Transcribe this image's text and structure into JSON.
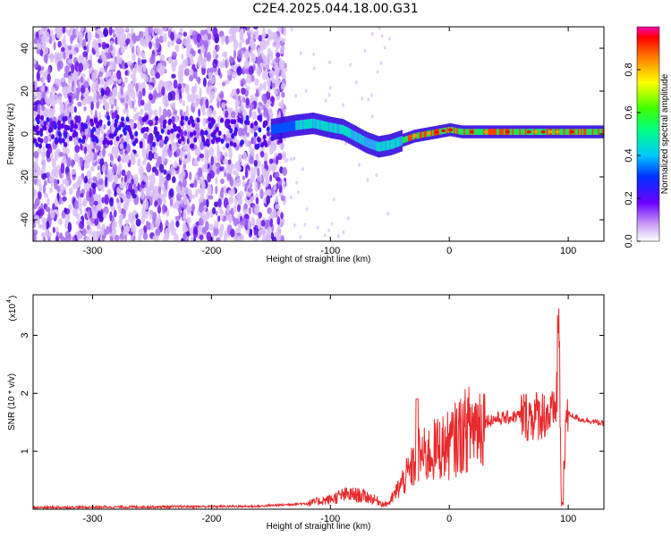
{
  "title": "C2E4.2025.044.18.00.G31",
  "chart_data": [
    {
      "type": "heatmap",
      "xlabel": "Height of straight line (km)",
      "ylabel": "Frequency (Hz)",
      "xlim": [
        -350,
        130
      ],
      "ylim": [
        -50,
        50
      ],
      "xticks": [
        -300,
        -200,
        -100,
        0,
        100
      ],
      "yticks": [
        -40,
        -20,
        0,
        20,
        40
      ],
      "colorbar": {
        "label": "Normalized spectral amplitude",
        "range": [
          0.0,
          1.0
        ],
        "ticks": [
          0.0,
          0.2,
          0.4,
          0.6,
          0.8
        ],
        "tick_labels": [
          "0.0",
          "0.2",
          "0.4",
          "0.6",
          "0.8"
        ]
      },
      "ridge": {
        "x": [
          -150,
          -130,
          -115,
          -100,
          -90,
          -80,
          -70,
          -60,
          -50,
          -45,
          -40,
          -30,
          -20,
          -10,
          0,
          10,
          30,
          60,
          80,
          90,
          100,
          130
        ],
        "freq": [
          2,
          4,
          5,
          3,
          2,
          -1,
          -4,
          -6,
          -5,
          -4,
          -3,
          -1,
          0,
          1,
          2,
          1,
          1,
          1,
          1,
          1,
          1,
          1
        ]
      }
    },
    {
      "type": "line",
      "xlabel": "Height of straight line (km)",
      "ylabel": "SNR (10 * v/v)",
      "y_scale_label": "(x10",
      "y_scale_exponent": "4",
      "xlim": [
        -350,
        130
      ],
      "ylim": [
        0,
        3.7
      ],
      "xticks": [
        -300,
        -200,
        -100,
        0,
        100
      ],
      "yticks": [
        1,
        2,
        3
      ],
      "series": [
        {
          "color": "#e8282a",
          "x": [
            -350,
            -250,
            -160,
            -120,
            -100,
            -90,
            -80,
            -70,
            -60,
            -55,
            -50,
            -40,
            -30,
            -25,
            -20,
            -10,
            0,
            10,
            20,
            30,
            40,
            50,
            60,
            70,
            80,
            88,
            92,
            95,
            98,
            100,
            110,
            120,
            130
          ],
          "y": [
            0.03,
            0.04,
            0.05,
            0.1,
            0.17,
            0.24,
            0.25,
            0.22,
            0.14,
            0.08,
            0.12,
            0.45,
            0.75,
            0.95,
            0.9,
            1.05,
            1.1,
            1.3,
            1.45,
            1.52,
            1.56,
            1.58,
            1.62,
            1.6,
            1.65,
            1.6,
            2.2,
            0.2,
            1.55,
            1.65,
            1.55,
            1.52,
            1.47
          ]
        }
      ]
    }
  ]
}
